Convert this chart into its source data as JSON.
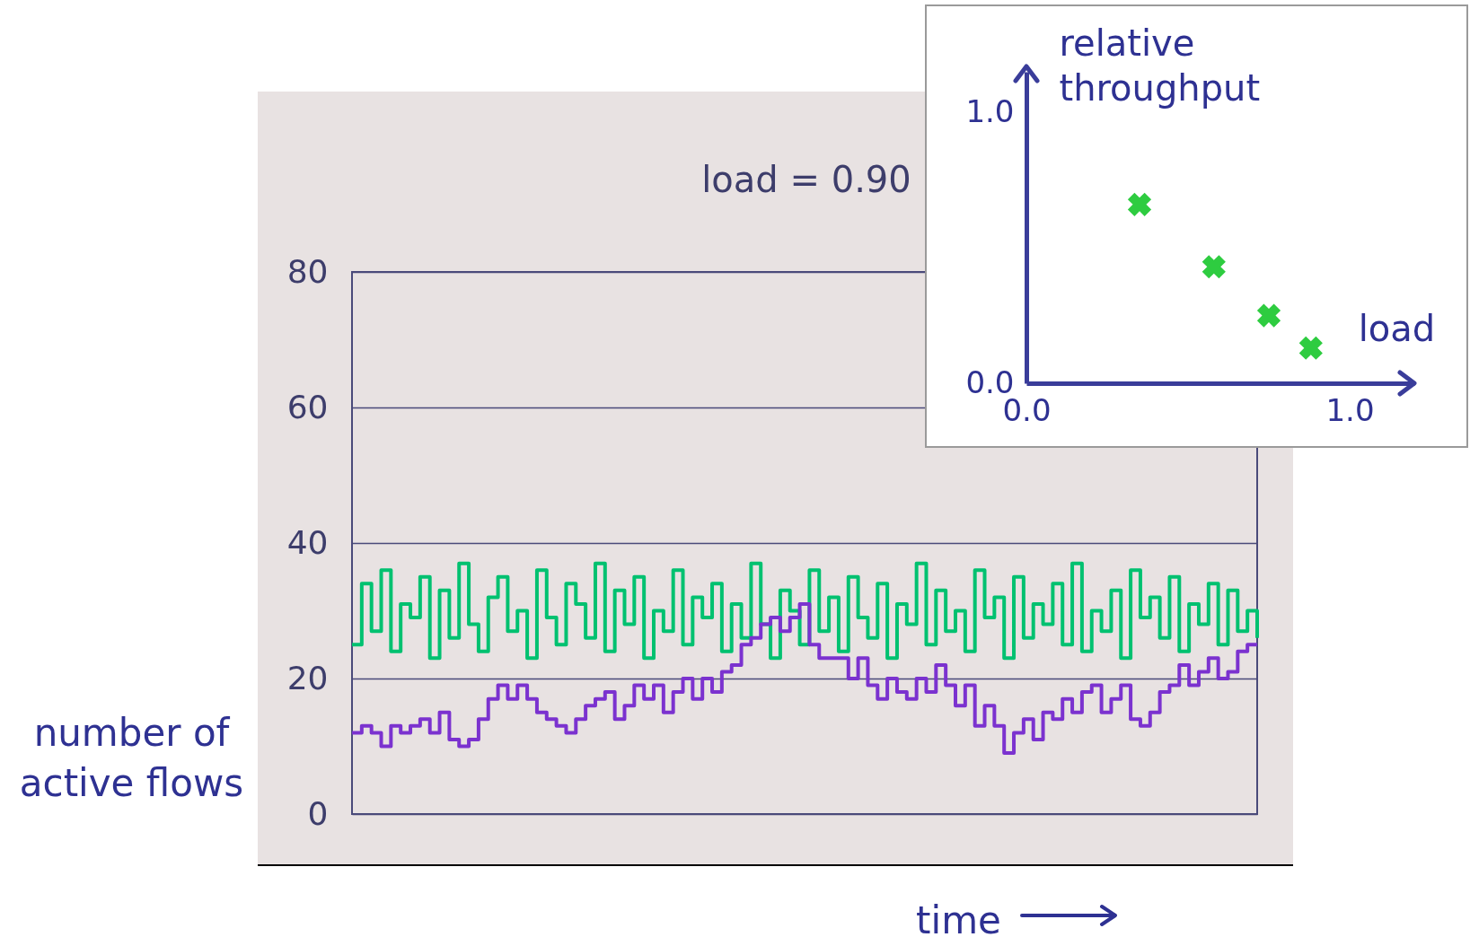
{
  "chart_data": [
    {
      "type": "step",
      "categories": [
        null,
        null,
        null,
        null,
        null,
        null,
        null,
        null,
        null,
        null,
        null,
        null,
        null,
        null,
        null,
        null,
        null,
        null,
        null,
        null,
        null,
        null,
        null,
        null,
        null,
        null,
        null,
        null,
        null,
        null,
        null,
        null,
        null,
        null,
        null,
        null,
        null,
        null,
        null,
        null,
        null,
        null,
        null,
        null,
        null,
        null,
        null,
        null,
        null,
        null,
        null,
        null,
        null,
        null,
        null,
        null,
        null,
        null,
        null,
        null,
        null,
        null,
        null,
        null,
        null,
        null,
        null,
        null,
        null,
        null,
        null,
        null,
        null,
        null,
        null,
        null,
        null,
        null,
        null,
        null,
        null,
        null,
        null,
        null,
        null,
        null,
        null,
        null,
        null,
        null,
        null,
        null,
        null,
        null
      ],
      "series": [
        {
          "color": "#00c170",
          "values": [
            25,
            34,
            27,
            36,
            24,
            31,
            29,
            35,
            23,
            33,
            26,
            37,
            28,
            24,
            32,
            35,
            27,
            30,
            23,
            36,
            29,
            25,
            34,
            31,
            26,
            37,
            24,
            33,
            28,
            35,
            23,
            30,
            27,
            36,
            25,
            32,
            29,
            34,
            24,
            31,
            26,
            37,
            28,
            23,
            33,
            30,
            25,
            36,
            27,
            32,
            24,
            35,
            29,
            26,
            34,
            23,
            31,
            28,
            37,
            25,
            33,
            27,
            30,
            24,
            36,
            29,
            32,
            23,
            35,
            26,
            31,
            28,
            34,
            25,
            37,
            24,
            30,
            27,
            33,
            23,
            36,
            29,
            32,
            26,
            35,
            24,
            31,
            28,
            34,
            25,
            33,
            27,
            30,
            26
          ]
        },
        {
          "color": "#7b32cf",
          "values": [
            12,
            13,
            12,
            10,
            13,
            12,
            13,
            14,
            12,
            15,
            11,
            10,
            11,
            14,
            17,
            19,
            17,
            19,
            17,
            15,
            14,
            13,
            12,
            14,
            16,
            17,
            18,
            14,
            16,
            19,
            17,
            19,
            15,
            18,
            20,
            17,
            20,
            18,
            21,
            22,
            25,
            26,
            28,
            29,
            27,
            29,
            31,
            25,
            23,
            23,
            23,
            20,
            23,
            19,
            17,
            20,
            18,
            17,
            20,
            18,
            22,
            19,
            16,
            19,
            13,
            16,
            13,
            9,
            12,
            14,
            11,
            15,
            14,
            17,
            15,
            18,
            19,
            15,
            17,
            19,
            14,
            13,
            15,
            18,
            19,
            22,
            19,
            21,
            23,
            20,
            21,
            24,
            25,
            25
          ]
        }
      ],
      "ylim": [
        0,
        80
      ],
      "yticks": [
        0,
        20,
        40,
        60,
        80
      ],
      "grid": "y",
      "tick_labels": "y",
      "ylabel": "number of active flows",
      "xlabel": "time",
      "annotations": [
        "load = 0.90"
      ]
    },
    {
      "type": "scatter",
      "x": [
        0.35,
        0.58,
        0.75,
        0.88
      ],
      "values": [
        0.66,
        0.43,
        0.25,
        0.13
      ],
      "color": "#2ecc40",
      "marker": "cross",
      "xlim": [
        0,
        1.2
      ],
      "ylim": [
        0,
        1.15
      ],
      "xticks": [
        {
          "value": 0,
          "label": "0.0"
        },
        {
          "value": 1,
          "label": "1.0"
        }
      ],
      "yticks": [
        {
          "value": 0,
          "label": "0.0"
        },
        {
          "value": 1,
          "label": "1.0"
        }
      ],
      "xlabel": "load",
      "ylabel": "relative throughput"
    }
  ]
}
